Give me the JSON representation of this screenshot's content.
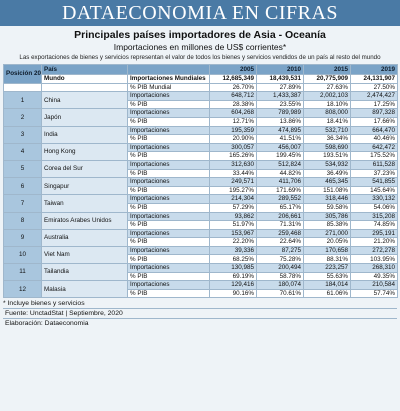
{
  "banner": "DATAECONOMIA EN CIFRAS",
  "title": "Principales países importadores de Asia - Oceanía",
  "subtitle": "Importaciones en millones de US$ corrientes*",
  "note": "Las exportaciones de bienes y servicios representan el valor de todos los bienes y servicios vendidos de un país al resto del mundo",
  "headers": {
    "position": "Posición 2019",
    "country": "País",
    "y2005": "2005",
    "y2010": "2010",
    "y2015": "2015",
    "y2019": "2019"
  },
  "world": {
    "name": "Mundo",
    "label1": "Importaciones Mundiales",
    "values1": [
      "12,685,349",
      "18,439,531",
      "20,775,909",
      "24,131,907"
    ],
    "label2": "% PIB Mundial",
    "values2": [
      "26.70%",
      "27.89%",
      "27.63%",
      "27.50%"
    ]
  },
  "rows": [
    {
      "rank": "1",
      "country": "China",
      "imp": [
        "648,712",
        "1,433,387",
        "2,002,103",
        "2,474,427"
      ],
      "pib": [
        "28.38%",
        "23.55%",
        "18.10%",
        "17.25%"
      ]
    },
    {
      "rank": "2",
      "country": "Japón",
      "imp": [
        "604,268",
        "789,989",
        "808,000",
        "897,328"
      ],
      "pib": [
        "12.71%",
        "13.86%",
        "18.41%",
        "17.66%"
      ]
    },
    {
      "rank": "3",
      "country": "India",
      "imp": [
        "195,359",
        "474,895",
        "532,710",
        "664,470"
      ],
      "pib": [
        "20.90%",
        "41.51%",
        "36.34%",
        "40.46%"
      ]
    },
    {
      "rank": "4",
      "country": "Hong Kong",
      "imp": [
        "300,057",
        "456,007",
        "598,690",
        "642,472"
      ],
      "pib": [
        "165.26%",
        "199.45%",
        "193.51%",
        "175.52%"
      ]
    },
    {
      "rank": "5",
      "country": "Corea del Sur",
      "imp": [
        "312,630",
        "512,824",
        "534,932",
        "611,528"
      ],
      "pib": [
        "33.44%",
        "44.82%",
        "36.49%",
        "37.23%"
      ]
    },
    {
      "rank": "6",
      "country": "Singapur",
      "imp": [
        "249,571",
        "411,706",
        "465,345",
        "541,855"
      ],
      "pib": [
        "195.27%",
        "171.69%",
        "151.08%",
        "145.64%"
      ]
    },
    {
      "rank": "7",
      "country": "Taiwan",
      "imp": [
        "214,304",
        "289,552",
        "318,446",
        "330,132"
      ],
      "pib": [
        "57.29%",
        "65.17%",
        "59.58%",
        "54.06%"
      ]
    },
    {
      "rank": "8",
      "country": "Emiratos Arabes Unidos",
      "imp": [
        "93,862",
        "206,661",
        "305,786",
        "315,208"
      ],
      "pib": [
        "51.97%",
        "71.31%",
        "85.38%",
        "74.85%"
      ]
    },
    {
      "rank": "9",
      "country": "Australia",
      "imp": [
        "153,967",
        "259,468",
        "271,000",
        "295,191"
      ],
      "pib": [
        "22.20%",
        "22.64%",
        "20.05%",
        "21.20%"
      ]
    },
    {
      "rank": "10",
      "country": "Viet Nam",
      "imp": [
        "39,336",
        "87,275",
        "170,658",
        "272,278"
      ],
      "pib": [
        "68.25%",
        "75.28%",
        "88.31%",
        "103.95%"
      ]
    },
    {
      "rank": "11",
      "country": "Tailandia",
      "imp": [
        "130,985",
        "200,494",
        "223,257",
        "268,310"
      ],
      "pib": [
        "69.19%",
        "58.78%",
        "55.63%",
        "49.35%"
      ]
    },
    {
      "rank": "12",
      "country": "Malasia",
      "imp": [
        "129,416",
        "180,074",
        "184,014",
        "210,584"
      ],
      "pib": [
        "90.16%",
        "70.61%",
        "61.06%",
        "57.74%"
      ]
    }
  ],
  "labels": {
    "imp": "Importaciones",
    "pib": "% PIB"
  },
  "footnote": "* Incluye bienes y servicios",
  "source": "Fuente: UnctadStat | Septiembre, 2020",
  "author": "Elaboración: Dataeconomia"
}
